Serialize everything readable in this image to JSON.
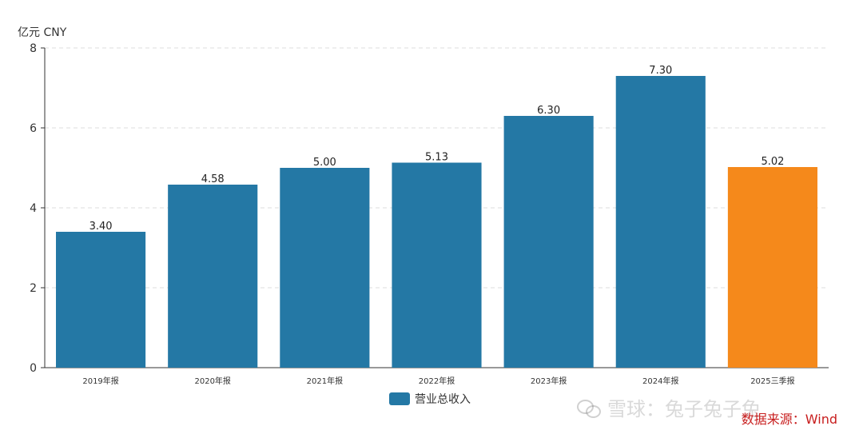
{
  "unit_label": "亿元  CNY",
  "legend": {
    "label": "营业总收入",
    "color": "#2478a5"
  },
  "source_text": "数据来源：Wind",
  "watermark": {
    "text": "雪球：兔子兔子兔",
    "icon": "wechat-icon"
  },
  "chart_data": {
    "type": "bar",
    "categories": [
      "2019年报",
      "2020年报",
      "2021年报",
      "2022年报",
      "2023年报",
      "2024年报",
      "2025三季报"
    ],
    "series": [
      {
        "name": "营业总收入",
        "values": [
          3.4,
          4.58,
          5.0,
          5.13,
          6.3,
          7.3,
          5.02
        ]
      }
    ],
    "value_labels": [
      "3.40",
      "4.58",
      "5.00",
      "5.13",
      "6.30",
      "7.30",
      "5.02"
    ],
    "bar_colors": [
      "#2478a5",
      "#2478a5",
      "#2478a5",
      "#2478a5",
      "#2478a5",
      "#2478a5",
      "#f5891b"
    ],
    "ylim": [
      0,
      8
    ],
    "yticks": [
      0,
      2,
      4,
      6,
      8
    ],
    "grid": "horizontal dashed",
    "legend_position": "bottom-center"
  }
}
